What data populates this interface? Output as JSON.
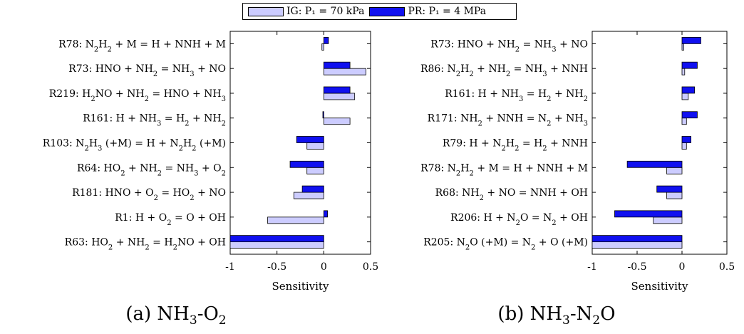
{
  "legend": {
    "items": [
      {
        "label": "IG: P₁ = 70 kPa",
        "color": "#ccccff"
      },
      {
        "label": "PR: P₁ = 4 MPa",
        "color": "#1010f0"
      }
    ]
  },
  "chart_data": [
    {
      "type": "bar",
      "orientation": "horizontal",
      "caption": "(a) NH₃-O₂",
      "xlabel": "Sensitivity",
      "xlim": [
        -1,
        0.5
      ],
      "xticks": [
        "-1",
        "-0.5",
        "0",
        "0.5"
      ],
      "categories": [
        "R78: N₂H₂ + M = H + NNH + M",
        "R73: HNO + NH₂ = NH₃ + NO",
        "R219: H₂NO + NH₂ = HNO + NH₃",
        "R161: H + NH₃ = H₂ + NH₂",
        "R103: N₂H₃ (+M) = H + N₂H₂ (+M)",
        "R64: HO₂ + NH₂ = NH₃ + O₂",
        "R181: HNO + O₂ = HO₂ + NO",
        "R1: H + O₂ = O + OH",
        "R63: HO₂ + NH₂ = H₂NO + OH"
      ],
      "series": [
        {
          "name": "IG: P₁ = 70 kPa",
          "values": [
            -0.02,
            0.45,
            0.33,
            0.28,
            -0.18,
            -0.18,
            -0.32,
            -0.6,
            -1.0
          ]
        },
        {
          "name": "PR: P₁ = 4 MPa",
          "values": [
            0.05,
            0.28,
            0.28,
            -0.01,
            -0.29,
            -0.36,
            -0.23,
            0.04,
            -1.0
          ]
        }
      ]
    },
    {
      "type": "bar",
      "orientation": "horizontal",
      "caption": "(b) NH₃-N₂O",
      "xlabel": "Sensitivity",
      "xlim": [
        -1,
        0.5
      ],
      "xticks": [
        "-1",
        "-0.5",
        "0",
        "0.5"
      ],
      "categories": [
        "R73: HNO + NH₂ = NH₃ + NO",
        "R86: N₂H₂ + NH₂ = NH₃ + NNH",
        "R161: H + NH₃ = H₂ + NH₂",
        "R171: NH₂ + NNH = N₂ + NH₃",
        "R79: H + N₂H₂ = H₂ + NNH",
        "R78: N₂H₂ + M = H + NNH + M",
        "R68: NH₂ + NO = NNH + OH",
        "R206: H + N₂O = N₂ + OH",
        "R205: N₂O (+M) = N₂ + O (+M)"
      ],
      "series": [
        {
          "name": "IG: P₁ = 70 kPa",
          "values": [
            0.02,
            0.03,
            0.07,
            0.05,
            0.05,
            -0.17,
            -0.17,
            -0.32,
            -1.0
          ]
        },
        {
          "name": "PR: P₁ = 4 MPa",
          "values": [
            0.21,
            0.17,
            0.14,
            0.17,
            0.1,
            -0.61,
            -0.28,
            -0.75,
            -1.0
          ]
        }
      ]
    }
  ]
}
